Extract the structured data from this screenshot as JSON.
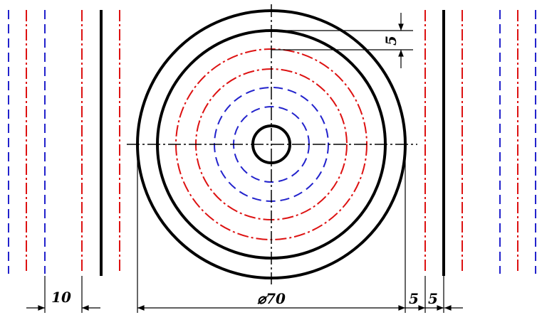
{
  "dimensions": {
    "diameter_label": "⌀70",
    "left_spacing_label": "10",
    "offset_label_top": "5",
    "offset_label_right_1": "5",
    "offset_label_right_2": "5"
  },
  "colors": {
    "outline": "#000000",
    "hidden_blue": "#2222cc",
    "center_red": "#dd1111",
    "background": "#ffffff"
  }
}
